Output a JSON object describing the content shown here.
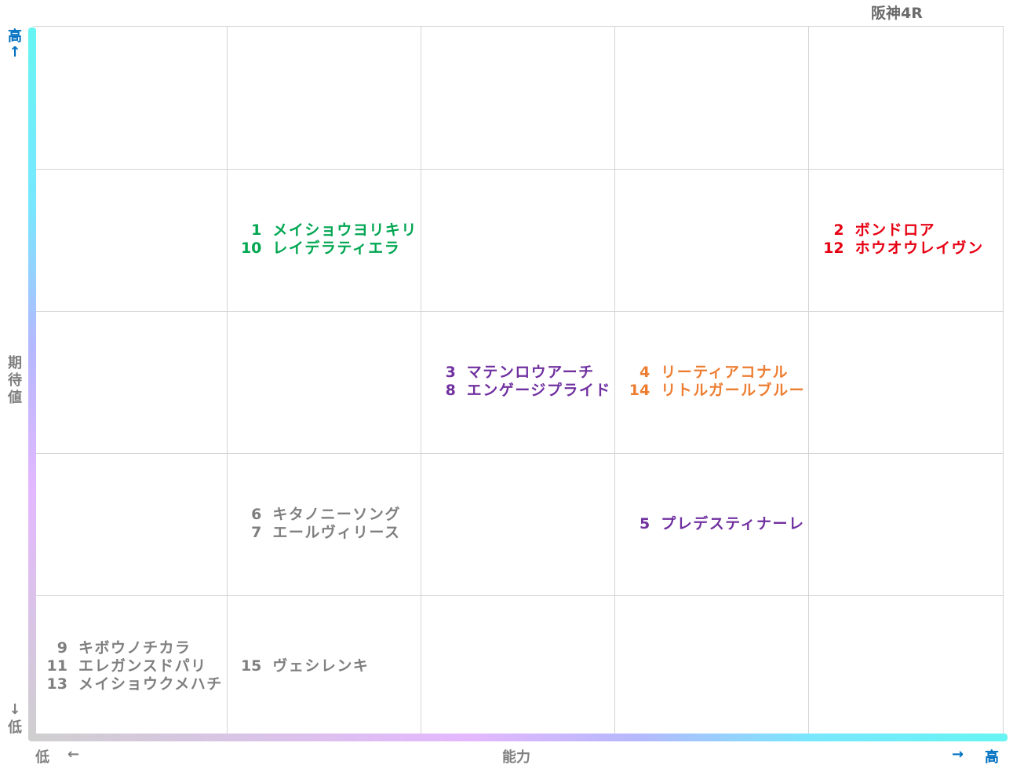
{
  "title": "阪神4R",
  "axes": {
    "y": {
      "high": "高",
      "high_arrow": "↑",
      "label": "期\n待\n値",
      "low_arrow": "↓",
      "low": "低"
    },
    "x": {
      "low": "低",
      "low_arrow": "←",
      "label": "能力",
      "high_arrow": "→",
      "high": "高"
    }
  },
  "colors": {
    "green": "#00a651",
    "red": "#e60012",
    "purple": "#7030a0",
    "orange": "#ed7d31",
    "gray": "#7f7f7f",
    "axis_blue": "#0070c0"
  },
  "chart_data": {
    "type": "table",
    "title": "阪神4R",
    "xlabel": "能力",
    "ylabel": "期待値",
    "columns": 5,
    "rows": 5,
    "cells": [
      {
        "row": 1,
        "col": 1,
        "color": "green",
        "entries": [
          {
            "num": "1",
            "name": "メイショウヨリキリ"
          },
          {
            "num": "10",
            "name": "レイデラティエラ"
          }
        ]
      },
      {
        "row": 1,
        "col": 4,
        "color": "red",
        "entries": [
          {
            "num": "2",
            "name": "ボンドロア"
          },
          {
            "num": "12",
            "name": "ホウオウレイヴン"
          }
        ]
      },
      {
        "row": 2,
        "col": 2,
        "color": "purple",
        "entries": [
          {
            "num": "3",
            "name": "マテンロウアーチ"
          },
          {
            "num": "8",
            "name": "エンゲージプライド"
          }
        ]
      },
      {
        "row": 2,
        "col": 3,
        "color": "orange",
        "entries": [
          {
            "num": "4",
            "name": "リーティアコナル"
          },
          {
            "num": "14",
            "name": "リトルガールブルー"
          }
        ]
      },
      {
        "row": 3,
        "col": 1,
        "color": "gray",
        "entries": [
          {
            "num": "6",
            "name": "キタノニーソング"
          },
          {
            "num": "7",
            "name": "エールヴィリース"
          }
        ]
      },
      {
        "row": 3,
        "col": 3,
        "color": "purple",
        "entries": [
          {
            "num": "5",
            "name": "プレデスティナーレ"
          }
        ]
      },
      {
        "row": 4,
        "col": 0,
        "color": "gray",
        "entries": [
          {
            "num": "9",
            "name": "キボウノチカラ"
          },
          {
            "num": "11",
            "name": "エレガンスドパリ"
          },
          {
            "num": "13",
            "name": "メイショウクメハチ"
          }
        ]
      },
      {
        "row": 4,
        "col": 1,
        "color": "gray",
        "entries": [
          {
            "num": "15",
            "name": "ヴェシレンキ"
          }
        ]
      }
    ]
  }
}
